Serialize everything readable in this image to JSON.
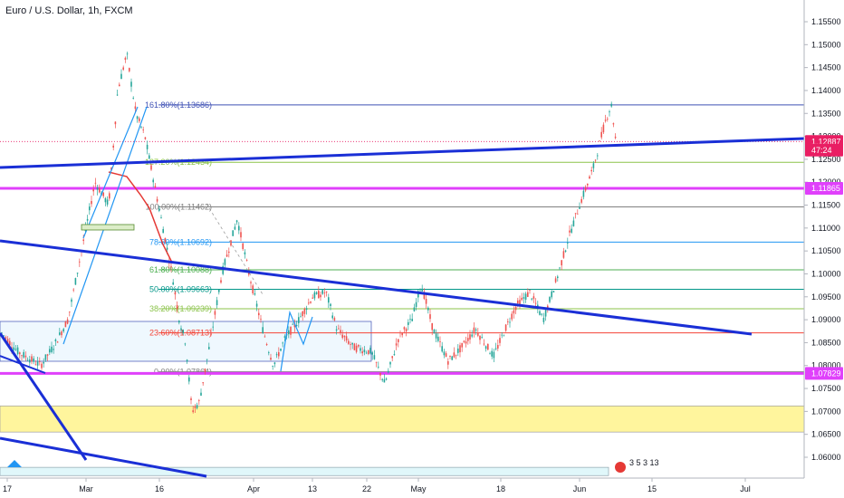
{
  "header": {
    "title": "Euro / U.S. Dollar, 1h, FXCM"
  },
  "chart_data": {
    "type": "candlestick",
    "title": "Euro / U.S. Dollar, 1h, FXCM",
    "ylim": [
      1.056,
      1.159
    ],
    "y_ticks": [
      "1.15500",
      "1.15000",
      "1.14500",
      "1.14000",
      "1.13500",
      "1.13000",
      "1.12500",
      "1.12000",
      "1.11500",
      "1.11000",
      "1.10500",
      "1.10000",
      "1.09500",
      "1.09000",
      "1.08500",
      "1.08000",
      "1.07500",
      "1.07000",
      "1.06500",
      "1.06000"
    ],
    "x_ticks": [
      "17",
      "Mar",
      "16",
      "Apr",
      "13",
      "22",
      "May",
      "18",
      "Jun",
      "15",
      "Jul"
    ],
    "price_tags": [
      {
        "label": "1.12887",
        "value": 1.12887,
        "color": "#e91e63"
      },
      {
        "label": "47:24",
        "value": 1.127,
        "color": "#e91e63"
      },
      {
        "label": "1.11865",
        "value": 1.11865,
        "color": "#e040fb"
      },
      {
        "label": "1.07829",
        "value": 1.07829,
        "color": "#e040fb"
      }
    ],
    "fib_levels": [
      {
        "label": "161.80%(1.13686)",
        "value": 1.13686,
        "color": "#3f51b5"
      },
      {
        "label": "127.20%(1.12434)",
        "value": 1.12434,
        "color": "#8bc34a"
      },
      {
        "label": "100.00%(1.11462)",
        "value": 1.11462,
        "color": "#808080"
      },
      {
        "label": "78.60%(1.10692)",
        "value": 1.10692,
        "color": "#2196f3"
      },
      {
        "label": "61.80%(1.10088)",
        "value": 1.10088,
        "color": "#4caf50"
      },
      {
        "label": "50.00%(1.09663)",
        "value": 1.09663,
        "color": "#009688"
      },
      {
        "label": "38.20%(1.09239)",
        "value": 1.09239,
        "color": "#8bc34a"
      },
      {
        "label": "23.60%(1.08713)",
        "value": 1.08713,
        "color": "#f44336"
      },
      {
        "label": "0.00%(1.07864)",
        "value": 1.07864,
        "color": "#808080"
      }
    ],
    "support_zone": {
      "low": 1.0655,
      "high": 1.0712,
      "color": "#fff59d"
    },
    "lower_zone": {
      "low": 1.056,
      "high": 1.0578,
      "color": "#e0f7fa"
    },
    "close_price": 1.12887,
    "event_labels": "3 5 3 13"
  }
}
